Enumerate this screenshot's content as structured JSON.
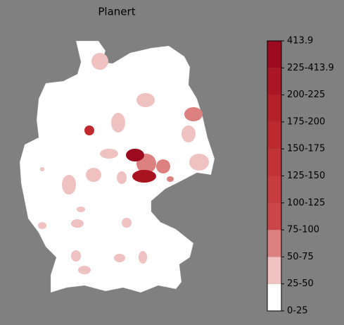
{
  "title": "Planert",
  "legend": {
    "labels": [
      "0-25",
      "25-50",
      "50-75",
      "75-100",
      "100-125",
      "125-150",
      "150-175",
      "175-200",
      "200-225",
      "225-413.9",
      "413.9"
    ],
    "colors": [
      "#ffffff",
      "#efc1c1",
      "#dc8080",
      "#cb4648",
      "#c63c3f",
      "#c13337",
      "#bc2a30",
      "#b52129",
      "#ab1624",
      "#9b0a1e"
    ]
  }
}
